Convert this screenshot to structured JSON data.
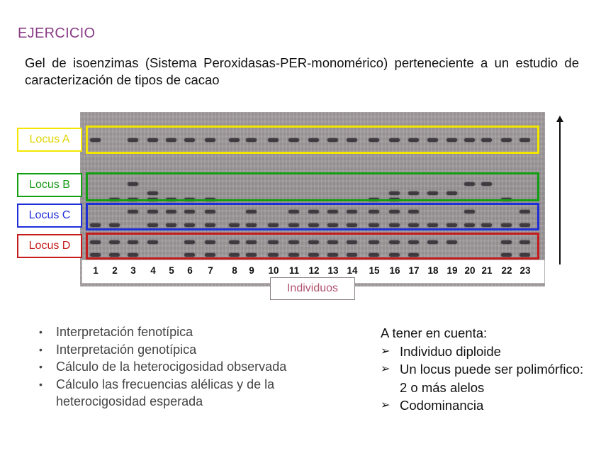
{
  "title": "EJERCICIO",
  "subtitle": "Gel de isoenzimas (Sistema Peroxidasas-PER-monomérico) perteneciente a un estudio de caracterización de tipos de cacao",
  "gel": {
    "loci": [
      {
        "label": "Locus A",
        "color": "#f2e600",
        "text_color": "#e0d400"
      },
      {
        "label": "Locus B",
        "color": "#12a012",
        "text_color": "#1a9a1a"
      },
      {
        "label": "Locus C",
        "color": "#1f2fd8",
        "text_color": "#1f2fd8"
      },
      {
        "label": "Locus D",
        "color": "#c41c1c",
        "text_color": "#c41c1c"
      }
    ],
    "individuals": [
      "1",
      "2",
      "3",
      "4",
      "5",
      "6",
      "7",
      "8",
      "9",
      "10",
      "11",
      "12",
      "13",
      "14",
      "15",
      "16",
      "17",
      "18",
      "19",
      "20",
      "21",
      "22",
      "23"
    ],
    "axis_label": "Individuos"
  },
  "bullets": [
    "Interpretación fenotípica",
    "Interpretación genotípica",
    "Cálculo de la heterocigosidad observada",
    "Cálculo las frecuencias alélicas y de la heterocigosidad esperada"
  ],
  "bullet_symbol": "•",
  "notes": {
    "heading": "A tener en cuenta:",
    "arrow_symbol": "➢",
    "items": [
      "Individuo diploide",
      "Un locus puede ser polimórfico: 2 o más alelos",
      "Codominancia"
    ]
  }
}
